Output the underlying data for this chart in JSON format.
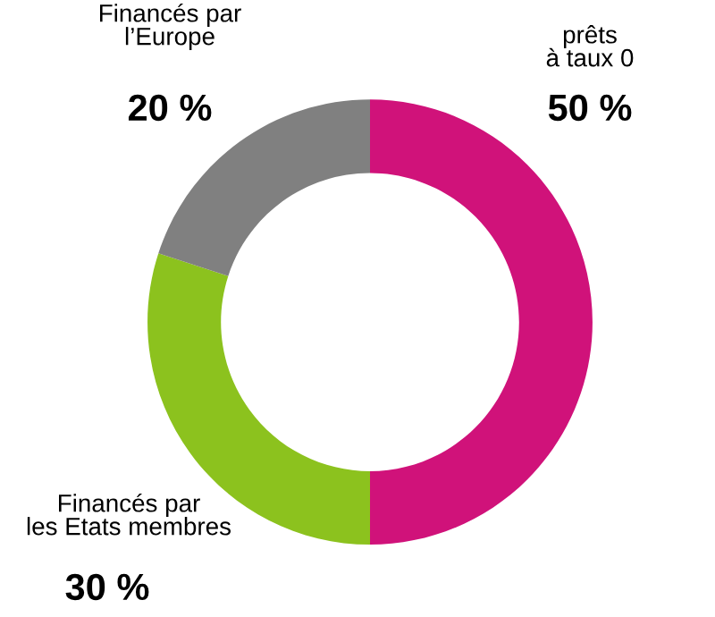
{
  "chart_data": {
    "type": "donut",
    "categories": [
      "prêts\nà taux 0",
      "Financés par\nles Etats membres",
      "Financés par\nl’Europe"
    ],
    "values": [
      50,
      30,
      20
    ],
    "colors": [
      "#d0127a",
      "#8cc21e",
      "#808080"
    ],
    "value_labels": [
      "50 %",
      "30 %",
      "20 %"
    ]
  }
}
